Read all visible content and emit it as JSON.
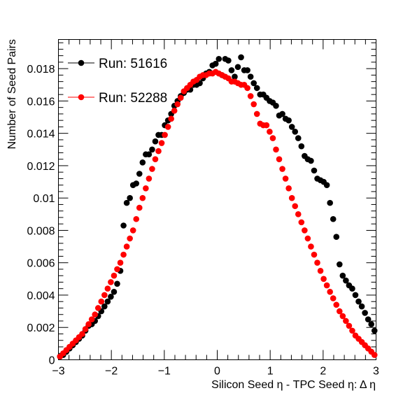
{
  "chart_data": {
    "type": "scatter",
    "title": "",
    "xlabel": "Silicon Seed  η - TPC Seed  η: Δ η",
    "ylabel": "Number of Seed Pairs",
    "xlim": [
      -3,
      3
    ],
    "ylim": [
      0,
      0.0198
    ],
    "xticks": [
      -3,
      -2,
      -1,
      0,
      1,
      2,
      3
    ],
    "xtick_labels": [
      "−3",
      "−2",
      "−1",
      "0",
      "1",
      "2",
      "3"
    ],
    "yticks": [
      0,
      0.002,
      0.004,
      0.006,
      0.008,
      0.01,
      0.012,
      0.014,
      0.016,
      0.018
    ],
    "ytick_labels": [
      "0",
      "0.002",
      "0.004",
      "0.006",
      "0.008",
      "0.01",
      "0.012",
      "0.014",
      "0.016",
      "0.018"
    ],
    "grid": false,
    "legend_position": "top-left",
    "x": [
      -2.97,
      -2.91,
      -2.85,
      -2.79,
      -2.73,
      -2.67,
      -2.61,
      -2.55,
      -2.49,
      -2.43,
      -2.37,
      -2.31,
      -2.25,
      -2.19,
      -2.13,
      -2.07,
      -2.01,
      -1.95,
      -1.89,
      -1.83,
      -1.77,
      -1.71,
      -1.65,
      -1.59,
      -1.53,
      -1.47,
      -1.41,
      -1.35,
      -1.29,
      -1.23,
      -1.17,
      -1.11,
      -1.05,
      -0.99,
      -0.93,
      -0.87,
      -0.81,
      -0.75,
      -0.69,
      -0.63,
      -0.57,
      -0.51,
      -0.45,
      -0.39,
      -0.33,
      -0.27,
      -0.21,
      -0.15,
      -0.09,
      -0.03,
      0.03,
      0.09,
      0.15,
      0.21,
      0.27,
      0.33,
      0.39,
      0.45,
      0.51,
      0.57,
      0.63,
      0.69,
      0.75,
      0.81,
      0.87,
      0.93,
      0.99,
      1.05,
      1.11,
      1.17,
      1.23,
      1.29,
      1.35,
      1.41,
      1.47,
      1.53,
      1.59,
      1.65,
      1.71,
      1.77,
      1.83,
      1.89,
      1.95,
      2.01,
      2.07,
      2.13,
      2.19,
      2.25,
      2.31,
      2.37,
      2.43,
      2.49,
      2.55,
      2.61,
      2.67,
      2.73,
      2.79,
      2.85,
      2.91,
      2.97
    ],
    "series": [
      {
        "name": "Run: 51616",
        "color": "#000000",
        "values": [
          0.0002,
          0.0003,
          0.0005,
          0.0007,
          0.0009,
          0.0011,
          0.0013,
          0.0015,
          0.0018,
          0.0021,
          0.0022,
          0.0024,
          0.0027,
          0.003,
          0.0033,
          0.0036,
          0.0039,
          0.0042,
          0.0047,
          0.0055,
          0.0083,
          0.0097,
          0.01,
          0.0108,
          0.0109,
          0.0115,
          0.0122,
          0.0127,
          0.0127,
          0.013,
          0.0135,
          0.0139,
          0.0139,
          0.0145,
          0.0148,
          0.0152,
          0.0157,
          0.016,
          0.0163,
          0.0165,
          0.0167,
          0.0167,
          0.017,
          0.017,
          0.0171,
          0.0174,
          0.0177,
          0.0178,
          0.0182,
          0.0183,
          0.0186,
          0.0176,
          0.0186,
          0.0185,
          0.0179,
          0.0175,
          0.0181,
          0.0187,
          0.0179,
          0.0179,
          0.0175,
          0.0171,
          0.0168,
          0.0164,
          0.0164,
          0.0162,
          0.016,
          0.0159,
          0.0157,
          0.0151,
          0.0152,
          0.0149,
          0.0148,
          0.0144,
          0.0141,
          0.0137,
          0.0132,
          0.0126,
          0.0124,
          0.0123,
          0.0117,
          0.0112,
          0.0111,
          0.011,
          0.0108,
          0.0097,
          0.0087,
          0.0076,
          0.0059,
          0.0052,
          0.0049,
          0.0046,
          0.0044,
          0.004,
          0.0036,
          0.0033,
          0.0029,
          0.0025,
          0.0022,
          0.0018
        ]
      },
      {
        "name": "Run: 52288",
        "color": "#ff0000",
        "values": [
          0.0002,
          0.0004,
          0.0006,
          0.0008,
          0.001,
          0.0012,
          0.0014,
          0.0016,
          0.0019,
          0.0022,
          0.0025,
          0.0028,
          0.0032,
          0.0036,
          0.004,
          0.0044,
          0.0048,
          0.0052,
          0.0056,
          0.006,
          0.0065,
          0.007,
          0.0075,
          0.008,
          0.0087,
          0.0094,
          0.01,
          0.0106,
          0.0112,
          0.0118,
          0.0124,
          0.0129,
          0.0134,
          0.0139,
          0.0144,
          0.0149,
          0.0154,
          0.0158,
          0.0162,
          0.0166,
          0.0168,
          0.017,
          0.0172,
          0.0173,
          0.0175,
          0.0176,
          0.0176,
          0.0177,
          0.0177,
          0.0178,
          0.0177,
          0.0176,
          0.0175,
          0.0174,
          0.0172,
          0.0172,
          0.0171,
          0.017,
          0.017,
          0.0168,
          0.0163,
          0.0158,
          0.0152,
          0.0146,
          0.0145,
          0.0145,
          0.0141,
          0.0137,
          0.013,
          0.0124,
          0.0118,
          0.0112,
          0.0106,
          0.01,
          0.0095,
          0.009,
          0.0085,
          0.008,
          0.0075,
          0.007,
          0.0065,
          0.006,
          0.0055,
          0.005,
          0.0046,
          0.0042,
          0.0038,
          0.0034,
          0.003,
          0.0027,
          0.0024,
          0.0021,
          0.0018,
          0.0015,
          0.0013,
          0.0011,
          0.0009,
          0.0007,
          0.0005,
          0.0003
        ]
      }
    ]
  }
}
